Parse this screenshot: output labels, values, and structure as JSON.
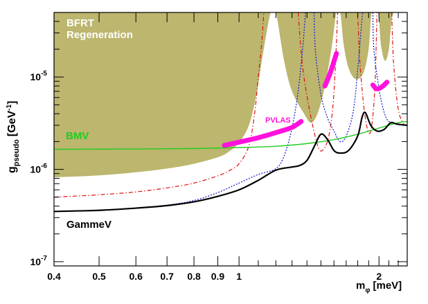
{
  "chart_data": {
    "type": "line",
    "title": "",
    "xlabel": {
      "main": "m",
      "sub": "φ",
      "unit": "[meV]"
    },
    "ylabel": {
      "main": "g",
      "sub": "pseudo",
      "unit": "[GeV",
      "exp": "-1",
      "close": "]"
    },
    "x_scale": "log",
    "y_scale": "log",
    "xlim": [
      0.4,
      2.3
    ],
    "ylim": [
      9e-08,
      5e-05
    ],
    "x_ticks": [
      {
        "value": 0.4,
        "label": "0.4"
      },
      {
        "value": 0.5,
        "label": "0.5"
      },
      {
        "value": 0.6,
        "label": "0.6"
      },
      {
        "value": 0.7,
        "label": "0.7"
      },
      {
        "value": 0.8,
        "label": "0.8"
      },
      {
        "value": 0.9,
        "label": "0.9"
      },
      {
        "value": 1.0,
        "label": "1"
      },
      {
        "value": 2.0,
        "label": "2"
      }
    ],
    "y_ticks": [
      {
        "value": 1e-07,
        "base": "10",
        "exp": "-7"
      },
      {
        "value": 1e-06,
        "base": "10",
        "exp": "-6"
      },
      {
        "value": 1e-05,
        "base": "10",
        "exp": "-5"
      }
    ],
    "colors": {
      "bfrt": "#bcb66e",
      "bmv": "#22cc22",
      "pvlas": "#ff11dd",
      "gammev": "#000000",
      "red_dashdot": "#dd1111",
      "blue_dotted": "#2222cc"
    },
    "annotations": {
      "bfrt_line1": "BFRT",
      "bfrt_line2": "Regeneration",
      "bmv": "BMV",
      "pvlas": "PVLAS",
      "gammev": "GammeV"
    },
    "series": [
      {
        "name": "BFRT Regeneration (excluded region lower boundary)",
        "style": "filled-region",
        "points": [
          [
            0.4,
            8.2e-07
          ],
          [
            0.5,
            8.6e-07
          ],
          [
            0.6,
            9.3e-07
          ],
          [
            0.7,
            1.02e-06
          ],
          [
            0.8,
            1.15e-06
          ],
          [
            0.9,
            1.35e-06
          ],
          [
            0.95,
            1.55e-06
          ],
          [
            1.0,
            1.95e-06
          ],
          [
            1.05,
            3e-06
          ],
          [
            1.09,
            6.5e-06
          ],
          [
            1.13,
            2e-05
          ],
          [
            1.17,
            5e-05
          ],
          [
            1.2,
            5e-05
          ],
          [
            1.25,
            1.5e-05
          ],
          [
            1.3,
            7e-06
          ],
          [
            1.38,
            4e-06
          ],
          [
            1.43,
            3.2e-06
          ],
          [
            1.48,
            4.2e-06
          ],
          [
            1.53,
            8e-06
          ],
          [
            1.58,
            2e-05
          ],
          [
            1.62,
            5e-05
          ],
          [
            1.65,
            5e-05
          ],
          [
            1.68,
            2.2e-05
          ],
          [
            1.72,
            1.25e-05
          ],
          [
            1.78,
            9.5e-06
          ],
          [
            1.85,
            1.1e-05
          ],
          [
            1.9,
            2e-05
          ],
          [
            1.93,
            5e-05
          ],
          [
            1.99,
            5e-05
          ],
          [
            2.02,
            2.2e-05
          ],
          [
            2.06,
            1.5e-05
          ],
          [
            2.1,
            2e-05
          ],
          [
            2.15,
            5e-05
          ],
          [
            2.3,
            5e-05
          ]
        ]
      },
      {
        "name": "BMV",
        "style": "solid",
        "points": [
          [
            0.4,
            1.65e-06
          ],
          [
            0.6,
            1.66e-06
          ],
          [
            0.8,
            1.68e-06
          ],
          [
            1.0,
            1.72e-06
          ],
          [
            1.2,
            1.78e-06
          ],
          [
            1.4,
            1.9e-06
          ],
          [
            1.6,
            2.1e-06
          ],
          [
            1.8,
            2.4e-06
          ],
          [
            2.0,
            2.8e-06
          ],
          [
            2.2,
            3.2e-06
          ],
          [
            2.3,
            3.3e-06
          ]
        ]
      },
      {
        "name": "PVLAS",
        "style": "thick-band",
        "segments": [
          [
            [
              0.93,
              1.82e-06
            ],
            [
              1.0,
              1.97e-06
            ],
            [
              1.1,
              2.2e-06
            ],
            [
              1.2,
              2.5e-06
            ],
            [
              1.3,
              2.85e-06
            ],
            [
              1.36,
              3.3e-06
            ]
          ],
          [
            [
              1.53,
              8e-06
            ],
            [
              1.57,
              1.1e-05
            ],
            [
              1.62,
              1.8e-05
            ]
          ],
          [
            [
              1.94,
              8.2e-06
            ],
            [
              1.97,
              7.5e-06
            ],
            [
              2.0,
              7.5e-06
            ],
            [
              2.04,
              8e-06
            ],
            [
              2.08,
              8.8e-06
            ]
          ]
        ]
      },
      {
        "name": "GammeV",
        "style": "solid",
        "points": [
          [
            0.4,
            3.5e-07
          ],
          [
            0.5,
            3.6e-07
          ],
          [
            0.6,
            3.8e-07
          ],
          [
            0.7,
            4.05e-07
          ],
          [
            0.8,
            4.45e-07
          ],
          [
            0.9,
            5.1e-07
          ],
          [
            1.0,
            6e-07
          ],
          [
            1.1,
            7.6e-07
          ],
          [
            1.2,
            9.8e-07
          ],
          [
            1.3,
            1.06e-06
          ],
          [
            1.35,
            1.1e-06
          ],
          [
            1.4,
            1.25e-06
          ],
          [
            1.45,
            1.75e-06
          ],
          [
            1.5,
            2.4e-06
          ],
          [
            1.55,
            2.1e-06
          ],
          [
            1.6,
            1.6e-06
          ],
          [
            1.65,
            1.5e-06
          ],
          [
            1.72,
            1.6e-06
          ],
          [
            1.8,
            2.3e-06
          ],
          [
            1.84,
            3.7e-06
          ],
          [
            1.87,
            4.1e-06
          ],
          [
            1.92,
            3e-06
          ],
          [
            1.98,
            2.6e-06
          ],
          [
            2.05,
            2.7e-06
          ],
          [
            2.12,
            3.2e-06
          ],
          [
            2.18,
            3.1e-06
          ],
          [
            2.3,
            3e-06
          ]
        ]
      },
      {
        "name": "red dash-dot",
        "style": "dashdot",
        "segments": [
          [
            [
              0.4,
              5e-07
            ],
            [
              0.5,
              5.3e-07
            ],
            [
              0.6,
              5.7e-07
            ],
            [
              0.7,
              6.3e-07
            ],
            [
              0.8,
              7.1e-07
            ],
            [
              0.9,
              8.5e-07
            ],
            [
              0.95,
              9.6e-07
            ],
            [
              1.0,
              1.15e-06
            ],
            [
              1.05,
              1.8e-06
            ],
            [
              1.08,
              4e-06
            ],
            [
              1.1,
              1e-05
            ],
            [
              1.12,
              2.5e-05
            ],
            [
              1.13,
              5e-05
            ]
          ],
          [
            [
              1.34,
              5e-05
            ],
            [
              1.37,
              1.3e-05
            ],
            [
              1.42,
              4.2e-06
            ],
            [
              1.48,
              1.75e-06
            ],
            [
              1.52,
              1.65e-06
            ],
            [
              1.56,
              2.3e-06
            ],
            [
              1.59,
              4.5e-06
            ],
            [
              1.61,
              1.2e-05
            ],
            [
              1.63,
              5e-05
            ]
          ],
          [
            [
              1.8,
              5e-05
            ],
            [
              1.82,
              1.4e-05
            ],
            [
              1.86,
              4.3e-06
            ],
            [
              1.9,
              2.5e-06
            ],
            [
              1.93,
              3e-06
            ],
            [
              1.96,
              8e-06
            ],
            [
              1.98,
              5e-05
            ]
          ],
          [
            [
              2.13,
              5e-05
            ],
            [
              2.15,
              1.4e-05
            ],
            [
              2.2,
              4.5e-06
            ],
            [
              2.26,
              3.1e-06
            ],
            [
              2.3,
              3e-06
            ]
          ]
        ]
      },
      {
        "name": "blue dotted",
        "style": "dotted",
        "segments": [
          [
            [
              0.4,
              3.5e-07
            ],
            [
              0.5,
              3.6e-07
            ],
            [
              0.6,
              3.8e-07
            ],
            [
              0.7,
              4.1e-07
            ],
            [
              0.8,
              4.6e-07
            ],
            [
              0.9,
              5.6e-07
            ],
            [
              1.0,
              7.1e-07
            ],
            [
              1.1,
              8.8e-07
            ],
            [
              1.2,
              1.02e-06
            ],
            [
              1.25,
              1.4e-06
            ],
            [
              1.3,
              2.8e-06
            ],
            [
              1.34,
              7e-06
            ],
            [
              1.37,
              2e-05
            ],
            [
              1.39,
              5e-05
            ]
          ],
          [
            [
              1.45,
              5e-05
            ],
            [
              1.46,
              1.9e-05
            ],
            [
              1.5,
              6.5e-06
            ],
            [
              1.55,
              3.6e-06
            ],
            [
              1.6,
              2.6e-06
            ],
            [
              1.65,
              2e-06
            ],
            [
              1.7,
              2.3e-06
            ],
            [
              1.76,
              4.2e-06
            ],
            [
              1.8,
              1.2e-05
            ],
            [
              1.84,
              4.5e-05
            ],
            [
              1.85,
              5e-05
            ]
          ],
          [
            [
              1.94,
              5e-05
            ],
            [
              1.95,
              2e-05
            ],
            [
              2.0,
              7.5e-06
            ],
            [
              2.05,
              4.2e-06
            ],
            [
              2.1,
              3.3e-06
            ],
            [
              2.2,
              3.05e-06
            ],
            [
              2.3,
              3e-06
            ]
          ]
        ]
      }
    ]
  }
}
